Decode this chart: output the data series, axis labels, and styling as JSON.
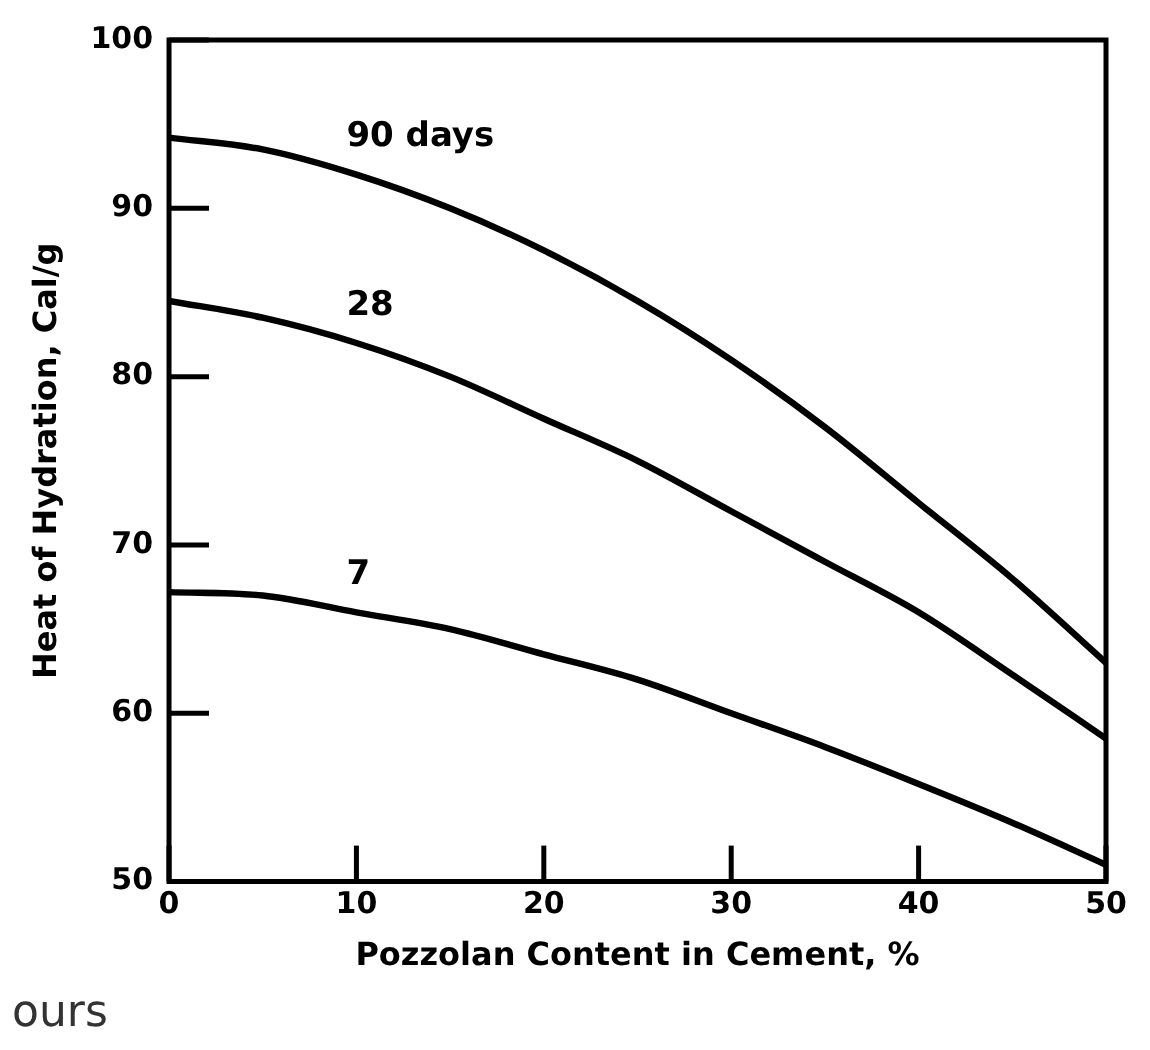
{
  "chart_data": {
    "type": "line",
    "xlabel": "Pozzolan Content in Cement, %",
    "ylabel": "Heat of Hydration, Cal/g",
    "x": [
      0,
      5,
      10,
      15,
      20,
      25,
      30,
      35,
      40,
      45,
      50
    ],
    "series": [
      {
        "name": "90 days",
        "color": "#000000",
        "values": [
          94.2,
          93.5,
          92,
          90,
          87.5,
          84.5,
          81,
          77,
          72.5,
          68,
          63
        ]
      },
      {
        "name": "28",
        "color": "#000000",
        "values": [
          84.5,
          83.5,
          82,
          80,
          77.5,
          75,
          72,
          69,
          66,
          62.3,
          58.5
        ]
      },
      {
        "name": "7",
        "color": "#000000",
        "values": [
          67.2,
          67,
          66,
          65,
          63.5,
          62,
          60,
          58,
          55.8,
          53.5,
          51
        ]
      }
    ],
    "xlim": [
      0,
      50
    ],
    "xticks": [
      0,
      10,
      20,
      30,
      40,
      50
    ],
    "ylim": [
      50,
      100
    ],
    "yticks": [
      50,
      60,
      70,
      80,
      90,
      100
    ],
    "grid": false,
    "legend": false,
    "marker": "none",
    "line_style": "solid",
    "annotations": [
      "ours"
    ]
  }
}
